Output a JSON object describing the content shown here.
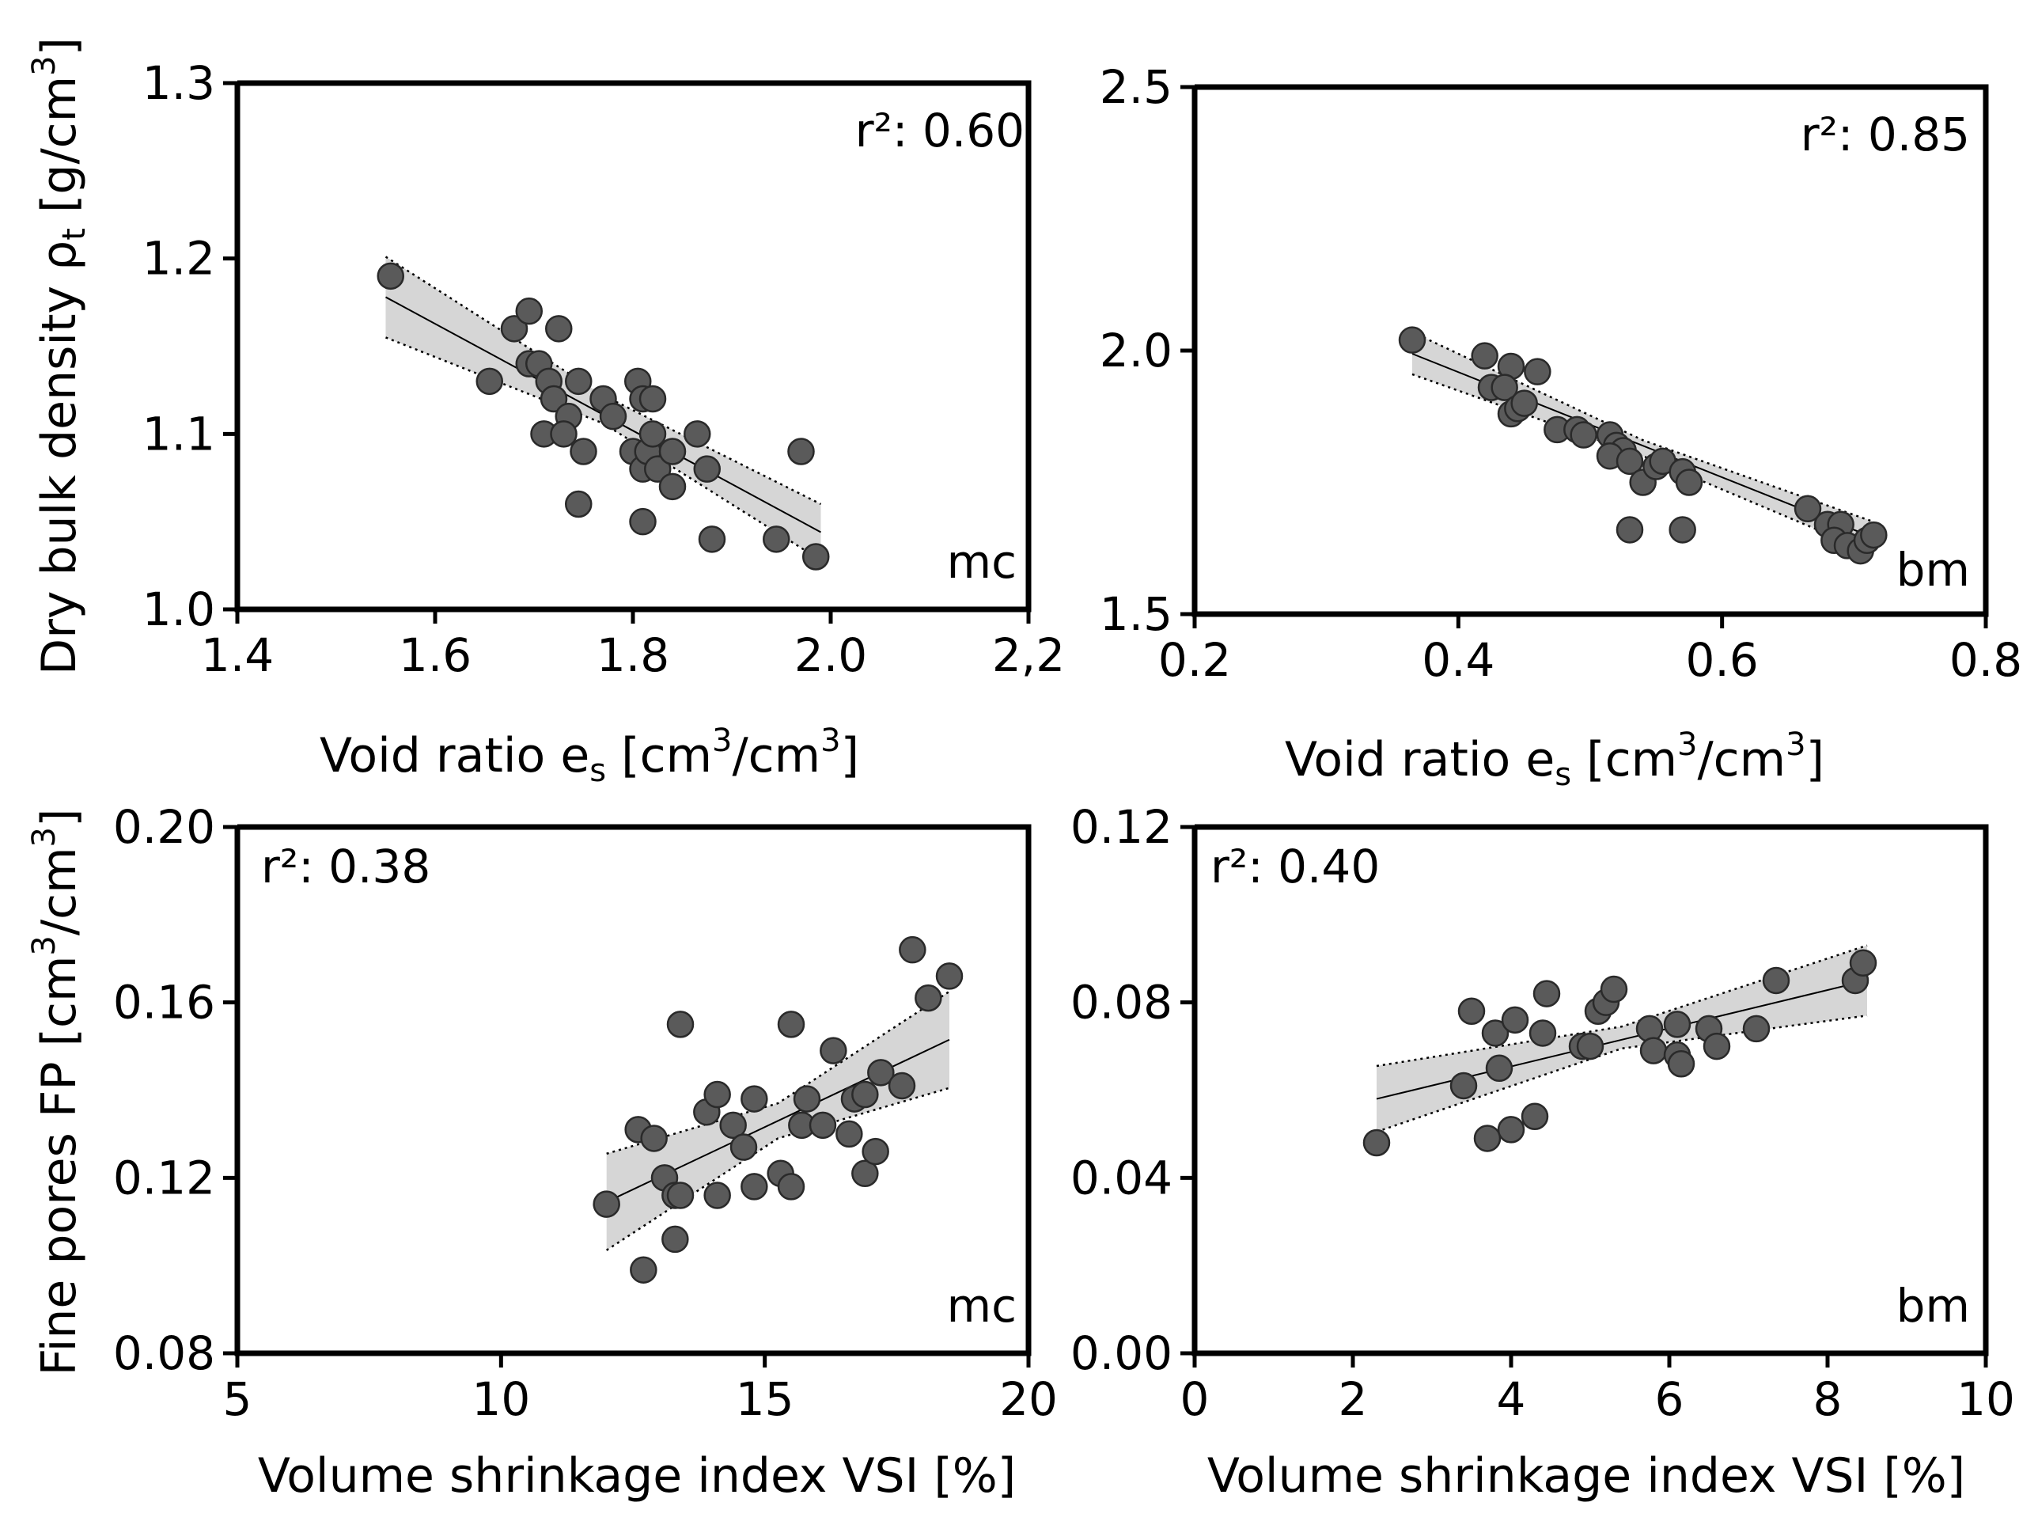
{
  "chart_data": [
    {
      "id": "a",
      "type": "scatter",
      "xlabel": "Void ratio e",
      "xlabel_sub": "s",
      "xlabel_units": " [cm",
      "xlabel_units2": "/cm",
      "xlabel_close": "]",
      "unit_exp": "3",
      "ylabel": "Dry bulk density ρ",
      "ylabel_sub": "t",
      "ylabel_units": " [g/cm",
      "ylabel_close": "]",
      "xlim": [
        1.4,
        2.2
      ],
      "ylim": [
        1.0,
        1.3
      ],
      "xticks": [
        1.4,
        1.6,
        1.8,
        2.0,
        2.2
      ],
      "xtick_labels": [
        "1.4",
        "1.6",
        "1.8",
        "2.0",
        "2,2"
      ],
      "yticks": [
        1.0,
        1.1,
        1.2,
        1.3
      ],
      "ytick_labels": [
        "1.0",
        "1.1",
        "1.2",
        "1.3"
      ],
      "r2": "r²: 0.60",
      "site": "mc",
      "fit": {
        "x0": 1.55,
        "y0": 1.178,
        "x1": 1.99,
        "y1": 1.044
      },
      "ci": {
        "lower": [
          [
            1.55,
            1.155
          ],
          [
            1.77,
            1.106
          ],
          [
            1.99,
            1.028
          ]
        ],
        "upper": [
          [
            1.55,
            1.201
          ],
          [
            1.77,
            1.122
          ],
          [
            1.99,
            1.06
          ]
        ]
      },
      "points": [
        [
          1.555,
          1.19
        ],
        [
          1.68,
          1.16
        ],
        [
          1.695,
          1.17
        ],
        [
          1.725,
          1.16
        ],
        [
          1.655,
          1.13
        ],
        [
          1.695,
          1.14
        ],
        [
          1.705,
          1.14
        ],
        [
          1.715,
          1.13
        ],
        [
          1.72,
          1.12
        ],
        [
          1.735,
          1.11
        ],
        [
          1.745,
          1.13
        ],
        [
          1.71,
          1.1
        ],
        [
          1.73,
          1.1
        ],
        [
          1.75,
          1.09
        ],
        [
          1.745,
          1.06
        ],
        [
          1.77,
          1.12
        ],
        [
          1.78,
          1.11
        ],
        [
          1.805,
          1.13
        ],
        [
          1.81,
          1.12
        ],
        [
          1.82,
          1.12
        ],
        [
          1.8,
          1.09
        ],
        [
          1.81,
          1.08
        ],
        [
          1.815,
          1.09
        ],
        [
          1.82,
          1.1
        ],
        [
          1.825,
          1.08
        ],
        [
          1.84,
          1.09
        ],
        [
          1.84,
          1.07
        ],
        [
          1.865,
          1.1
        ],
        [
          1.875,
          1.08
        ],
        [
          1.81,
          1.05
        ],
        [
          1.88,
          1.04
        ],
        [
          1.945,
          1.04
        ],
        [
          1.97,
          1.09
        ],
        [
          1.985,
          1.03
        ]
      ]
    },
    {
      "id": "b",
      "type": "scatter",
      "xlabel": "Void ratio e",
      "xlabel_sub": "s",
      "xlabel_units": " [cm",
      "xlabel_units2": "/cm",
      "xlabel_close": "]",
      "unit_exp": "3",
      "xlim": [
        0.2,
        0.8
      ],
      "ylim": [
        1.5,
        2.5
      ],
      "xticks": [
        0.2,
        0.4,
        0.6,
        0.8
      ],
      "xtick_labels": [
        "0.2",
        "0.4",
        "0.6",
        "0.8"
      ],
      "yticks": [
        1.5,
        2.0,
        2.5
      ],
      "ytick_labels": [
        "1.5",
        "2.0",
        "2.5"
      ],
      "r2": "r²: 0.85",
      "site": "bm",
      "fit": {
        "x0": 0.365,
        "y0": 1.994,
        "x1": 0.715,
        "y1": 1.645
      },
      "ci": {
        "lower": [
          [
            0.365,
            1.955
          ],
          [
            0.54,
            1.8
          ],
          [
            0.715,
            1.615
          ]
        ],
        "upper": [
          [
            0.365,
            2.035
          ],
          [
            0.54,
            1.83
          ],
          [
            0.715,
            1.675
          ]
        ]
      },
      "points": [
        [
          0.365,
          2.02
        ],
        [
          0.42,
          1.99
        ],
        [
          0.44,
          1.97
        ],
        [
          0.46,
          1.96
        ],
        [
          0.425,
          1.93
        ],
        [
          0.435,
          1.93
        ],
        [
          0.44,
          1.88
        ],
        [
          0.445,
          1.89
        ],
        [
          0.45,
          1.9
        ],
        [
          0.475,
          1.85
        ],
        [
          0.49,
          1.85
        ],
        [
          0.495,
          1.84
        ],
        [
          0.515,
          1.84
        ],
        [
          0.52,
          1.82
        ],
        [
          0.525,
          1.81
        ],
        [
          0.515,
          1.8
        ],
        [
          0.53,
          1.79
        ],
        [
          0.54,
          1.75
        ],
        [
          0.55,
          1.78
        ],
        [
          0.555,
          1.79
        ],
        [
          0.57,
          1.77
        ],
        [
          0.575,
          1.75
        ],
        [
          0.53,
          1.66
        ],
        [
          0.57,
          1.66
        ],
        [
          0.665,
          1.7
        ],
        [
          0.68,
          1.67
        ],
        [
          0.69,
          1.67
        ],
        [
          0.685,
          1.64
        ],
        [
          0.695,
          1.63
        ],
        [
          0.705,
          1.62
        ],
        [
          0.71,
          1.64
        ],
        [
          0.715,
          1.65
        ]
      ]
    },
    {
      "id": "c",
      "type": "scatter",
      "xlabel": "Volume shrinkage index VSI [%]",
      "ylabel": "Fine pores FP  [cm",
      "ylabel_units2": "/cm",
      "ylabel_close": "]",
      "unit_exp": "3",
      "xlim": [
        5,
        20
      ],
      "ylim": [
        0.08,
        0.2
      ],
      "xticks": [
        5,
        10,
        15,
        20
      ],
      "xtick_labels": [
        "5",
        "10",
        "15",
        "20"
      ],
      "yticks": [
        0.08,
        0.12,
        0.16,
        0.2
      ],
      "ytick_labels": [
        "0.08",
        "0.12",
        "0.16",
        "0.20"
      ],
      "r2": "r²: 0.38",
      "site": "mc",
      "fit": {
        "x0": 12.0,
        "y0": 0.1145,
        "x1": 18.5,
        "y1": 0.1515
      },
      "ci": {
        "lower": [
          [
            12.0,
            0.1035
          ],
          [
            15.25,
            0.129
          ],
          [
            18.5,
            0.1405
          ]
        ],
        "upper": [
          [
            12.0,
            0.1255
          ],
          [
            15.25,
            0.137
          ],
          [
            18.5,
            0.1625
          ]
        ]
      },
      "points": [
        [
          12.0,
          0.114
        ],
        [
          12.6,
          0.131
        ],
        [
          12.7,
          0.099
        ],
        [
          12.9,
          0.129
        ],
        [
          13.1,
          0.12
        ],
        [
          13.3,
          0.116
        ],
        [
          13.3,
          0.106
        ],
        [
          13.4,
          0.116
        ],
        [
          13.4,
          0.155
        ],
        [
          13.9,
          0.135
        ],
        [
          14.1,
          0.139
        ],
        [
          14.1,
          0.116
        ],
        [
          14.4,
          0.132
        ],
        [
          14.6,
          0.127
        ],
        [
          14.8,
          0.138
        ],
        [
          14.8,
          0.118
        ],
        [
          15.3,
          0.121
        ],
        [
          15.5,
          0.118
        ],
        [
          15.5,
          0.155
        ],
        [
          15.7,
          0.132
        ],
        [
          15.8,
          0.138
        ],
        [
          16.1,
          0.132
        ],
        [
          16.3,
          0.149
        ],
        [
          16.6,
          0.13
        ],
        [
          16.7,
          0.138
        ],
        [
          16.9,
          0.139
        ],
        [
          16.9,
          0.121
        ],
        [
          17.1,
          0.126
        ],
        [
          17.2,
          0.144
        ],
        [
          17.6,
          0.141
        ],
        [
          17.8,
          0.172
        ],
        [
          18.1,
          0.161
        ],
        [
          18.5,
          0.166
        ]
      ]
    },
    {
      "id": "d",
      "type": "scatter",
      "xlabel": "Volume shrinkage index VSI [%]",
      "xlim": [
        0,
        10
      ],
      "ylim": [
        0.0,
        0.12
      ],
      "xticks": [
        0,
        2,
        4,
        6,
        8,
        10
      ],
      "xtick_labels": [
        "0",
        "2",
        "4",
        "6",
        "8",
        "10"
      ],
      "yticks": [
        0.0,
        0.04,
        0.08,
        0.12
      ],
      "ytick_labels": [
        "0.00",
        "0.04",
        "0.08",
        "0.12"
      ],
      "r2": "r²: 0.40",
      "site": "bm",
      "fit": {
        "x0": 2.3,
        "y0": 0.058,
        "x1": 8.5,
        "y1": 0.085
      },
      "ci": {
        "lower": [
          [
            2.3,
            0.0505
          ],
          [
            5.4,
            0.0695
          ],
          [
            8.5,
            0.077
          ]
        ],
        "upper": [
          [
            2.3,
            0.0655
          ],
          [
            5.4,
            0.0745
          ],
          [
            8.5,
            0.093
          ]
        ]
      },
      "points": [
        [
          2.3,
          0.048
        ],
        [
          3.4,
          0.061
        ],
        [
          3.5,
          0.078
        ],
        [
          3.7,
          0.049
        ],
        [
          3.8,
          0.073
        ],
        [
          3.85,
          0.065
        ],
        [
          4.0,
          0.051
        ],
        [
          4.05,
          0.076
        ],
        [
          4.3,
          0.054
        ],
        [
          4.4,
          0.073
        ],
        [
          4.45,
          0.082
        ],
        [
          4.9,
          0.07
        ],
        [
          5.0,
          0.07
        ],
        [
          5.1,
          0.078
        ],
        [
          5.2,
          0.08
        ],
        [
          5.3,
          0.083
        ],
        [
          5.75,
          0.074
        ],
        [
          5.8,
          0.069
        ],
        [
          6.1,
          0.068
        ],
        [
          6.1,
          0.075
        ],
        [
          6.15,
          0.066
        ],
        [
          6.5,
          0.074
        ],
        [
          6.6,
          0.07
        ],
        [
          7.1,
          0.074
        ],
        [
          7.35,
          0.085
        ],
        [
          8.35,
          0.085
        ],
        [
          8.45,
          0.089
        ]
      ]
    }
  ]
}
